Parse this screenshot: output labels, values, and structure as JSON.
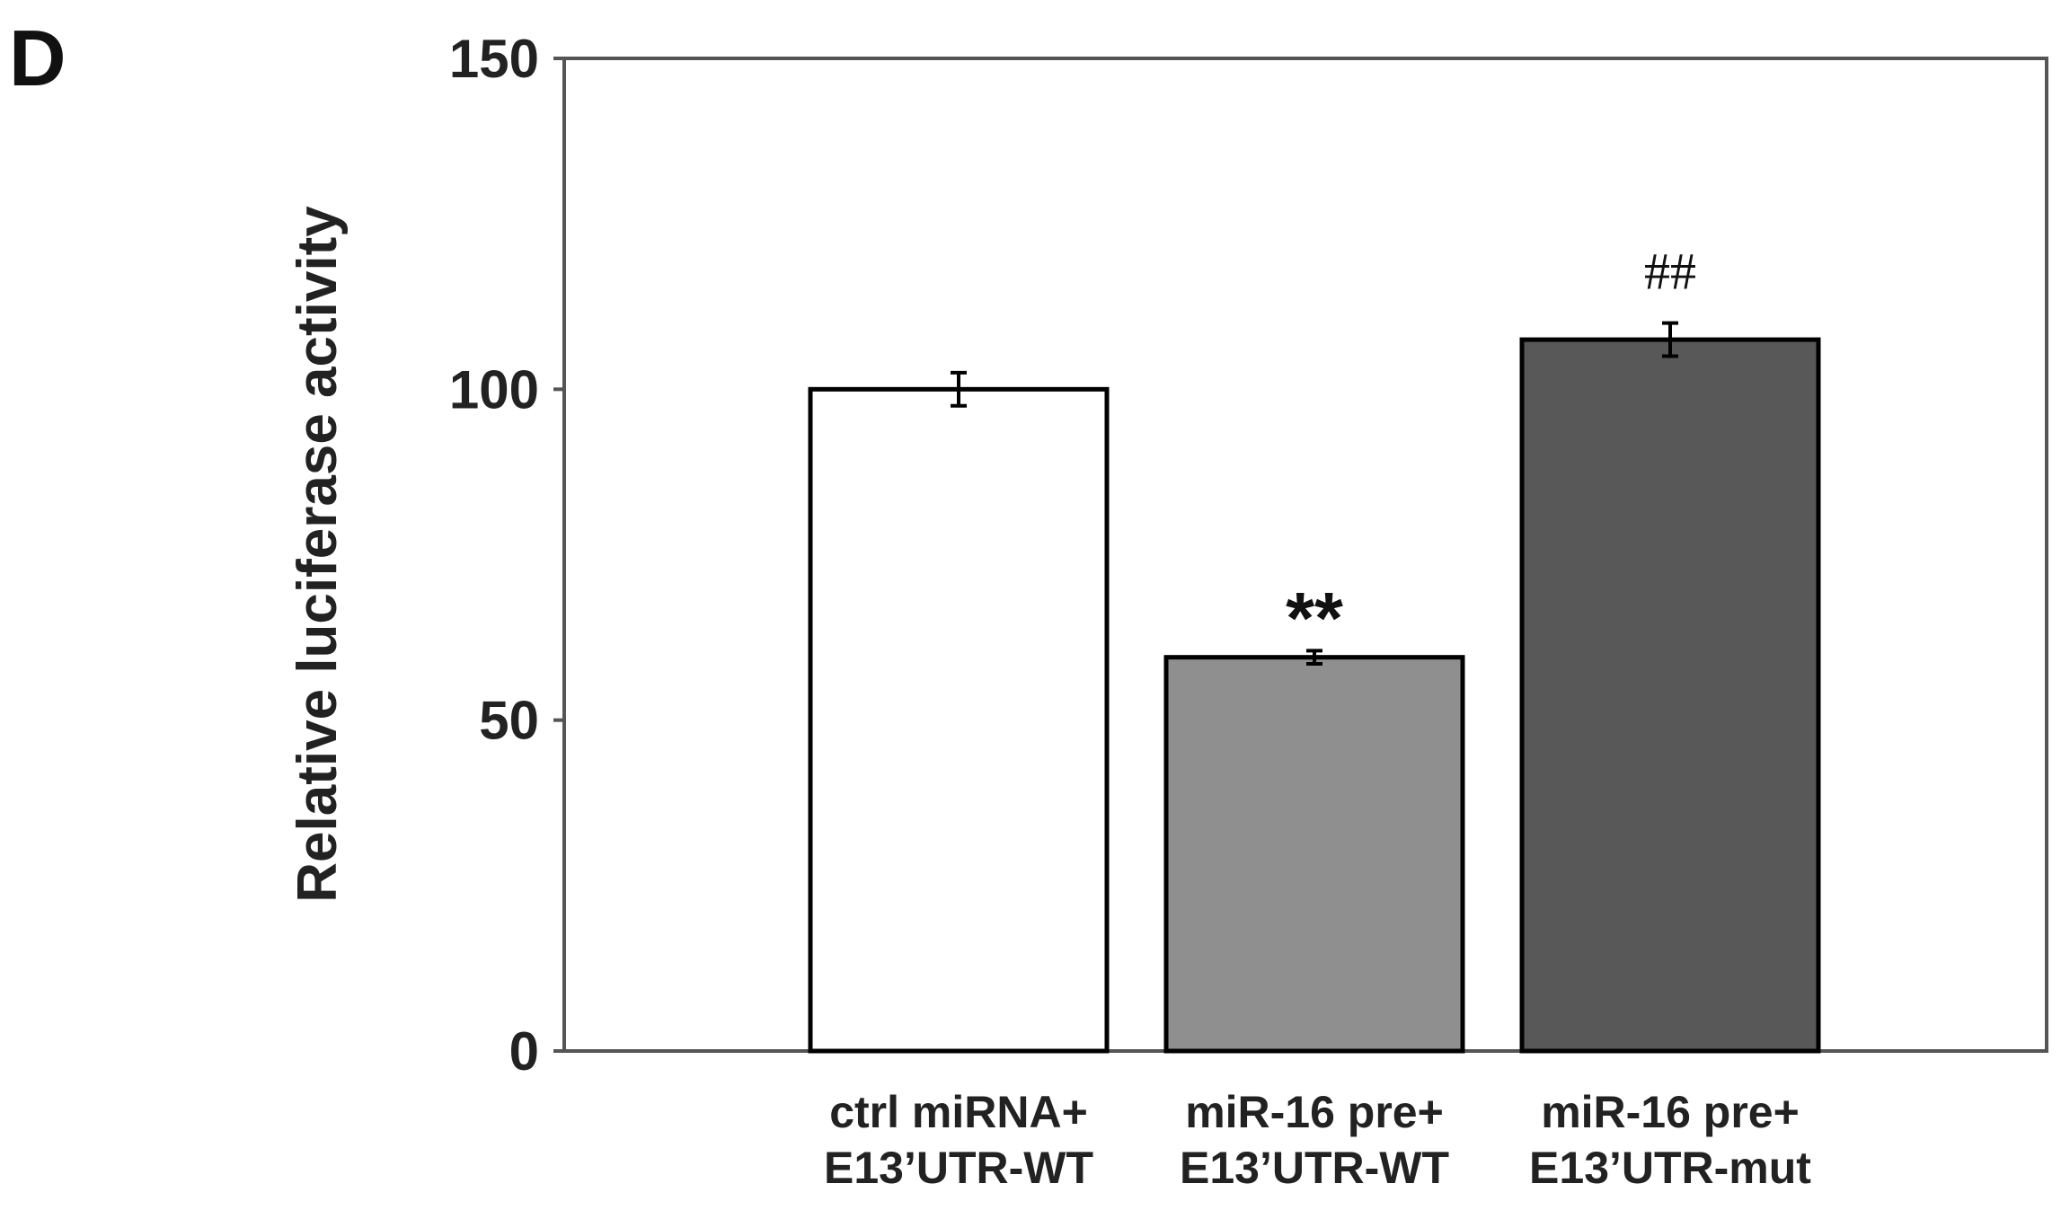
{
  "panel_label": "D",
  "chart_data": {
    "type": "bar",
    "title": "",
    "xlabel": "",
    "ylabel": "Relative luciferase activity",
    "ylim": [
      0,
      150
    ],
    "yticks": [
      "0",
      "50",
      "100",
      "150"
    ],
    "grid": false,
    "categories": [
      [
        "ctrl miRNA+",
        "E13’UTR-WT"
      ],
      [
        "miR-16 pre+",
        "E13’UTR-WT"
      ],
      [
        "miR-16 pre+",
        "E13’UTR-mut"
      ]
    ],
    "values": [
      100,
      59.5,
      107.5
    ],
    "errors": [
      2.5,
      1.0,
      2.5
    ],
    "colors": [
      "#ffffff",
      "#8f8f8f",
      "#585858"
    ],
    "annotations": [
      "",
      "**",
      "##"
    ]
  }
}
